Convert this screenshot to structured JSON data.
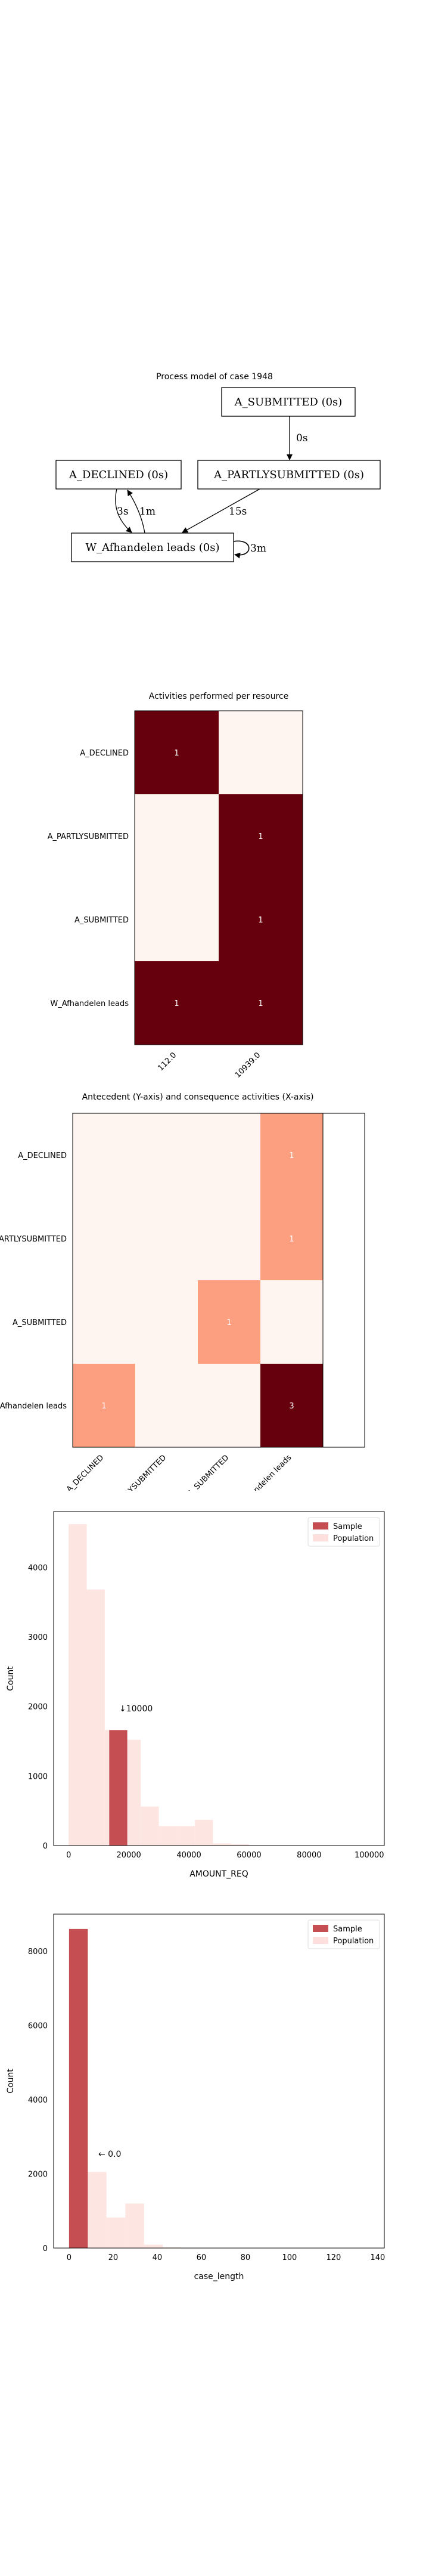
{
  "chart_data": [
    {
      "type": "diagram",
      "title": "Process model of case 1948",
      "nodes": [
        {
          "id": "submitted",
          "label": "A_SUBMITTED (0s)"
        },
        {
          "id": "partly",
          "label": "A_PARTLYSUBMITTED (0s)"
        },
        {
          "id": "declined",
          "label": "A_DECLINED (0s)"
        },
        {
          "id": "leads",
          "label": "W_Afhandelen leads (0s)"
        }
      ],
      "edges": [
        {
          "from": "submitted",
          "to": "partly",
          "label": "0s"
        },
        {
          "from": "partly",
          "to": "leads",
          "label": "15s"
        },
        {
          "from": "declined",
          "to": "leads",
          "label": "3s"
        },
        {
          "from": "leads",
          "to": "declined",
          "label": "1m"
        },
        {
          "from": "leads",
          "to": "leads",
          "label": "3m"
        }
      ]
    },
    {
      "type": "heatmap",
      "title": "Activities performed per resource",
      "rows": [
        "A_DECLINED",
        "A_PARTLYSUBMITTED",
        "A_SUBMITTED",
        "W_Afhandelen leads"
      ],
      "cols": [
        "112.0",
        "10939.0"
      ],
      "values": [
        [
          1,
          0
        ],
        [
          0,
          1
        ],
        [
          0,
          1
        ],
        [
          1,
          1
        ]
      ],
      "colors": {
        "high": "#67000d",
        "low": "#fff5f0"
      }
    },
    {
      "type": "heatmap",
      "title": "Antecedent (Y-axis) and consequence activities (X-axis)",
      "rows": [
        "A_DECLINED",
        "A_PARTLYSUBMITTED",
        "A_SUBMITTED",
        "W_Afhandelen leads"
      ],
      "cols": [
        "A_DECLINED",
        "A_PARTLYSUBMITTED",
        "A_SUBMITTED",
        "W_Afhandelen leads"
      ],
      "values": [
        [
          0,
          0,
          0,
          1
        ],
        [
          0,
          0,
          0,
          1
        ],
        [
          0,
          0,
          1,
          0
        ],
        [
          1,
          0,
          0,
          3
        ]
      ],
      "colors": {
        "high": "#67000d",
        "mid": "#fc9f81",
        "low": "#fff5f0"
      }
    },
    {
      "type": "bar",
      "subtype": "histogram",
      "xlabel": "AMOUNT_REQ",
      "ylabel": "Count",
      "xlim": [
        -5000,
        105000
      ],
      "ylim": [
        0,
        4800
      ],
      "xticks": [
        0,
        20000,
        40000,
        60000,
        80000,
        100000
      ],
      "yticks": [
        0,
        1000,
        2000,
        3000,
        4000
      ],
      "bin_width": 6000,
      "series": [
        {
          "name": "Sample",
          "color": "#c44e52",
          "bins": [
            {
              "x0": 13500,
              "x1": 19500,
              "count": 1660
            }
          ]
        },
        {
          "name": "Population",
          "color": "#fde0dd",
          "bins": [
            {
              "x0": 0,
              "x1": 6000,
              "count": 4620
            },
            {
              "x0": 6000,
              "x1": 12000,
              "count": 3680
            },
            {
              "x0": 12000,
              "x1": 18000,
              "count": 1660
            },
            {
              "x0": 18000,
              "x1": 24000,
              "count": 1520
            },
            {
              "x0": 24000,
              "x1": 30000,
              "count": 560
            },
            {
              "x0": 30000,
              "x1": 36000,
              "count": 280
            },
            {
              "x0": 36000,
              "x1": 42000,
              "count": 280
            },
            {
              "x0": 42000,
              "x1": 48000,
              "count": 370
            },
            {
              "x0": 48000,
              "x1": 54000,
              "count": 30
            },
            {
              "x0": 54000,
              "x1": 60000,
              "count": 20
            }
          ]
        }
      ],
      "annotation": "↓10000",
      "legend": "top-right"
    },
    {
      "type": "bar",
      "subtype": "histogram",
      "xlabel": "case_length",
      "ylabel": "Count",
      "xlim": [
        -7,
        143
      ],
      "ylim": [
        0,
        9000
      ],
      "xticks": [
        0,
        20,
        40,
        60,
        80,
        100,
        120,
        140
      ],
      "yticks": [
        0,
        2000,
        4000,
        6000,
        8000
      ],
      "series": [
        {
          "name": "Sample",
          "color": "#c44e52",
          "bins": [
            {
              "x0": 0,
              "x1": 8.5,
              "count": 8600
            }
          ]
        },
        {
          "name": "Population",
          "color": "#fde0dd",
          "bins": [
            {
              "x0": 0,
              "x1": 8.5,
              "count": 8600
            },
            {
              "x0": 8.5,
              "x1": 17,
              "count": 2050
            },
            {
              "x0": 17,
              "x1": 25.5,
              "count": 820
            },
            {
              "x0": 25.5,
              "x1": 34,
              "count": 1200
            },
            {
              "x0": 34,
              "x1": 42.5,
              "count": 90
            },
            {
              "x0": 42.5,
              "x1": 51,
              "count": 20
            },
            {
              "x0": 51,
              "x1": 59.5,
              "count": 10
            }
          ]
        }
      ],
      "annotation": "← 0.0",
      "legend": "top-right"
    }
  ],
  "legend": {
    "sample": "Sample",
    "population": "Population"
  }
}
